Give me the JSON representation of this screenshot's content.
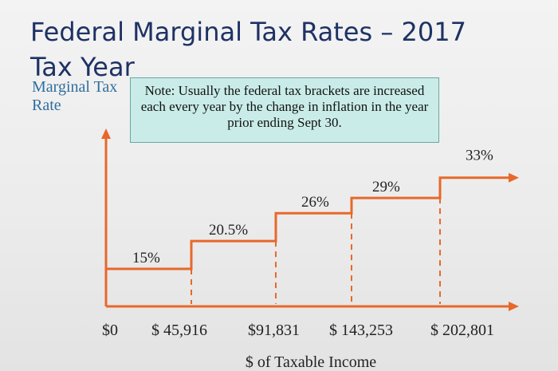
{
  "slide": {
    "title": "Federal Marginal Tax Rates – 2017 Tax Year",
    "y_axis_label": "Marginal Tax Rate",
    "note": "Note: Usually the federal tax brackets are increased each every year by the change in inflation in the year prior ending Sept 30."
  },
  "colors": {
    "title": "#1e3264",
    "axis_label": "#2f6f9e",
    "accent": "#e8682a",
    "note_fill": "#c9ece8",
    "data_label": "#222222"
  },
  "chart_data": {
    "type": "step",
    "title": "Federal Marginal Tax Rates – 2017 Tax Year",
    "xlabel": "$ of Taxable Income",
    "ylabel": "Marginal Tax Rate",
    "x_tick_labels": [
      "$0",
      "$ 45,916",
      "$91,831",
      "$ 143,253",
      "$ 202,801"
    ],
    "brackets": [
      {
        "from": 0,
        "to": 45916,
        "rate": 15,
        "label": "15%"
      },
      {
        "from": 45916,
        "to": 91831,
        "rate": 20.5,
        "label": "20.5%"
      },
      {
        "from": 91831,
        "to": 143253,
        "rate": 26,
        "label": "26%"
      },
      {
        "from": 143253,
        "to": 202801,
        "rate": 29,
        "label": "29%"
      },
      {
        "from": 202801,
        "to": null,
        "rate": 33,
        "label": "33%"
      }
    ],
    "grid": false,
    "legend": "none"
  }
}
